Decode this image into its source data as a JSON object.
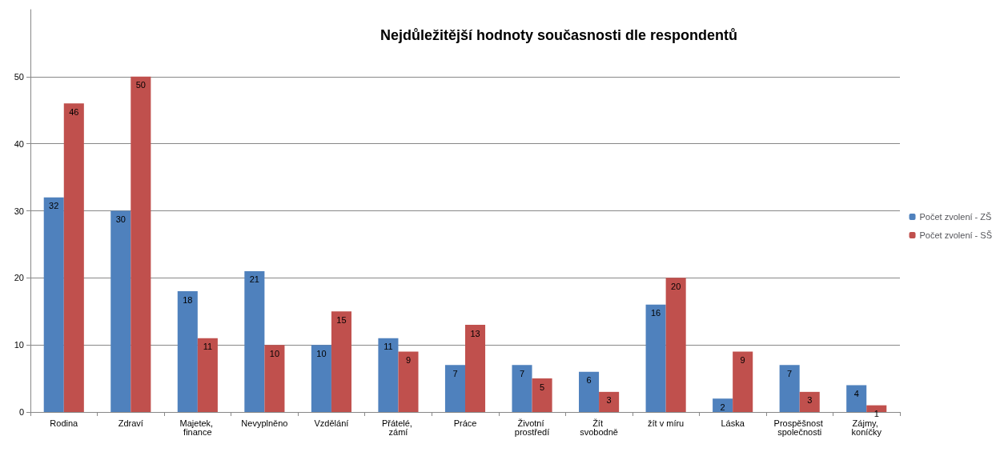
{
  "chart_data": {
    "type": "bar",
    "title": "Nejdůležitější hodnoty současnosti dle respondentů",
    "categories": [
      "Rodina",
      "Zdraví",
      "Majetek, finance",
      "Nevyplněno",
      "Vzdělání",
      "Přátelé, zámí",
      "Práce",
      "Životní prostředí",
      "Žít svobodně",
      "žít v míru",
      "Láska",
      "Prospěšnost společnosti",
      "Zájmy, koníčky"
    ],
    "series": [
      {
        "name": "Počet zvolení - ZŠ",
        "color": "#4f81bd",
        "values": [
          32,
          30,
          18,
          21,
          10,
          11,
          7,
          7,
          6,
          16,
          2,
          7,
          4
        ]
      },
      {
        "name": "Počet zvolení - SŠ",
        "color": "#c0504d",
        "values": [
          46,
          50,
          11,
          10,
          15,
          9,
          13,
          5,
          3,
          20,
          9,
          3,
          1
        ]
      }
    ],
    "ylim": [
      0,
      60
    ],
    "yticks": [
      0,
      10,
      20,
      30,
      40,
      50
    ],
    "grid": "y",
    "legend": "right",
    "data_labels": true
  }
}
